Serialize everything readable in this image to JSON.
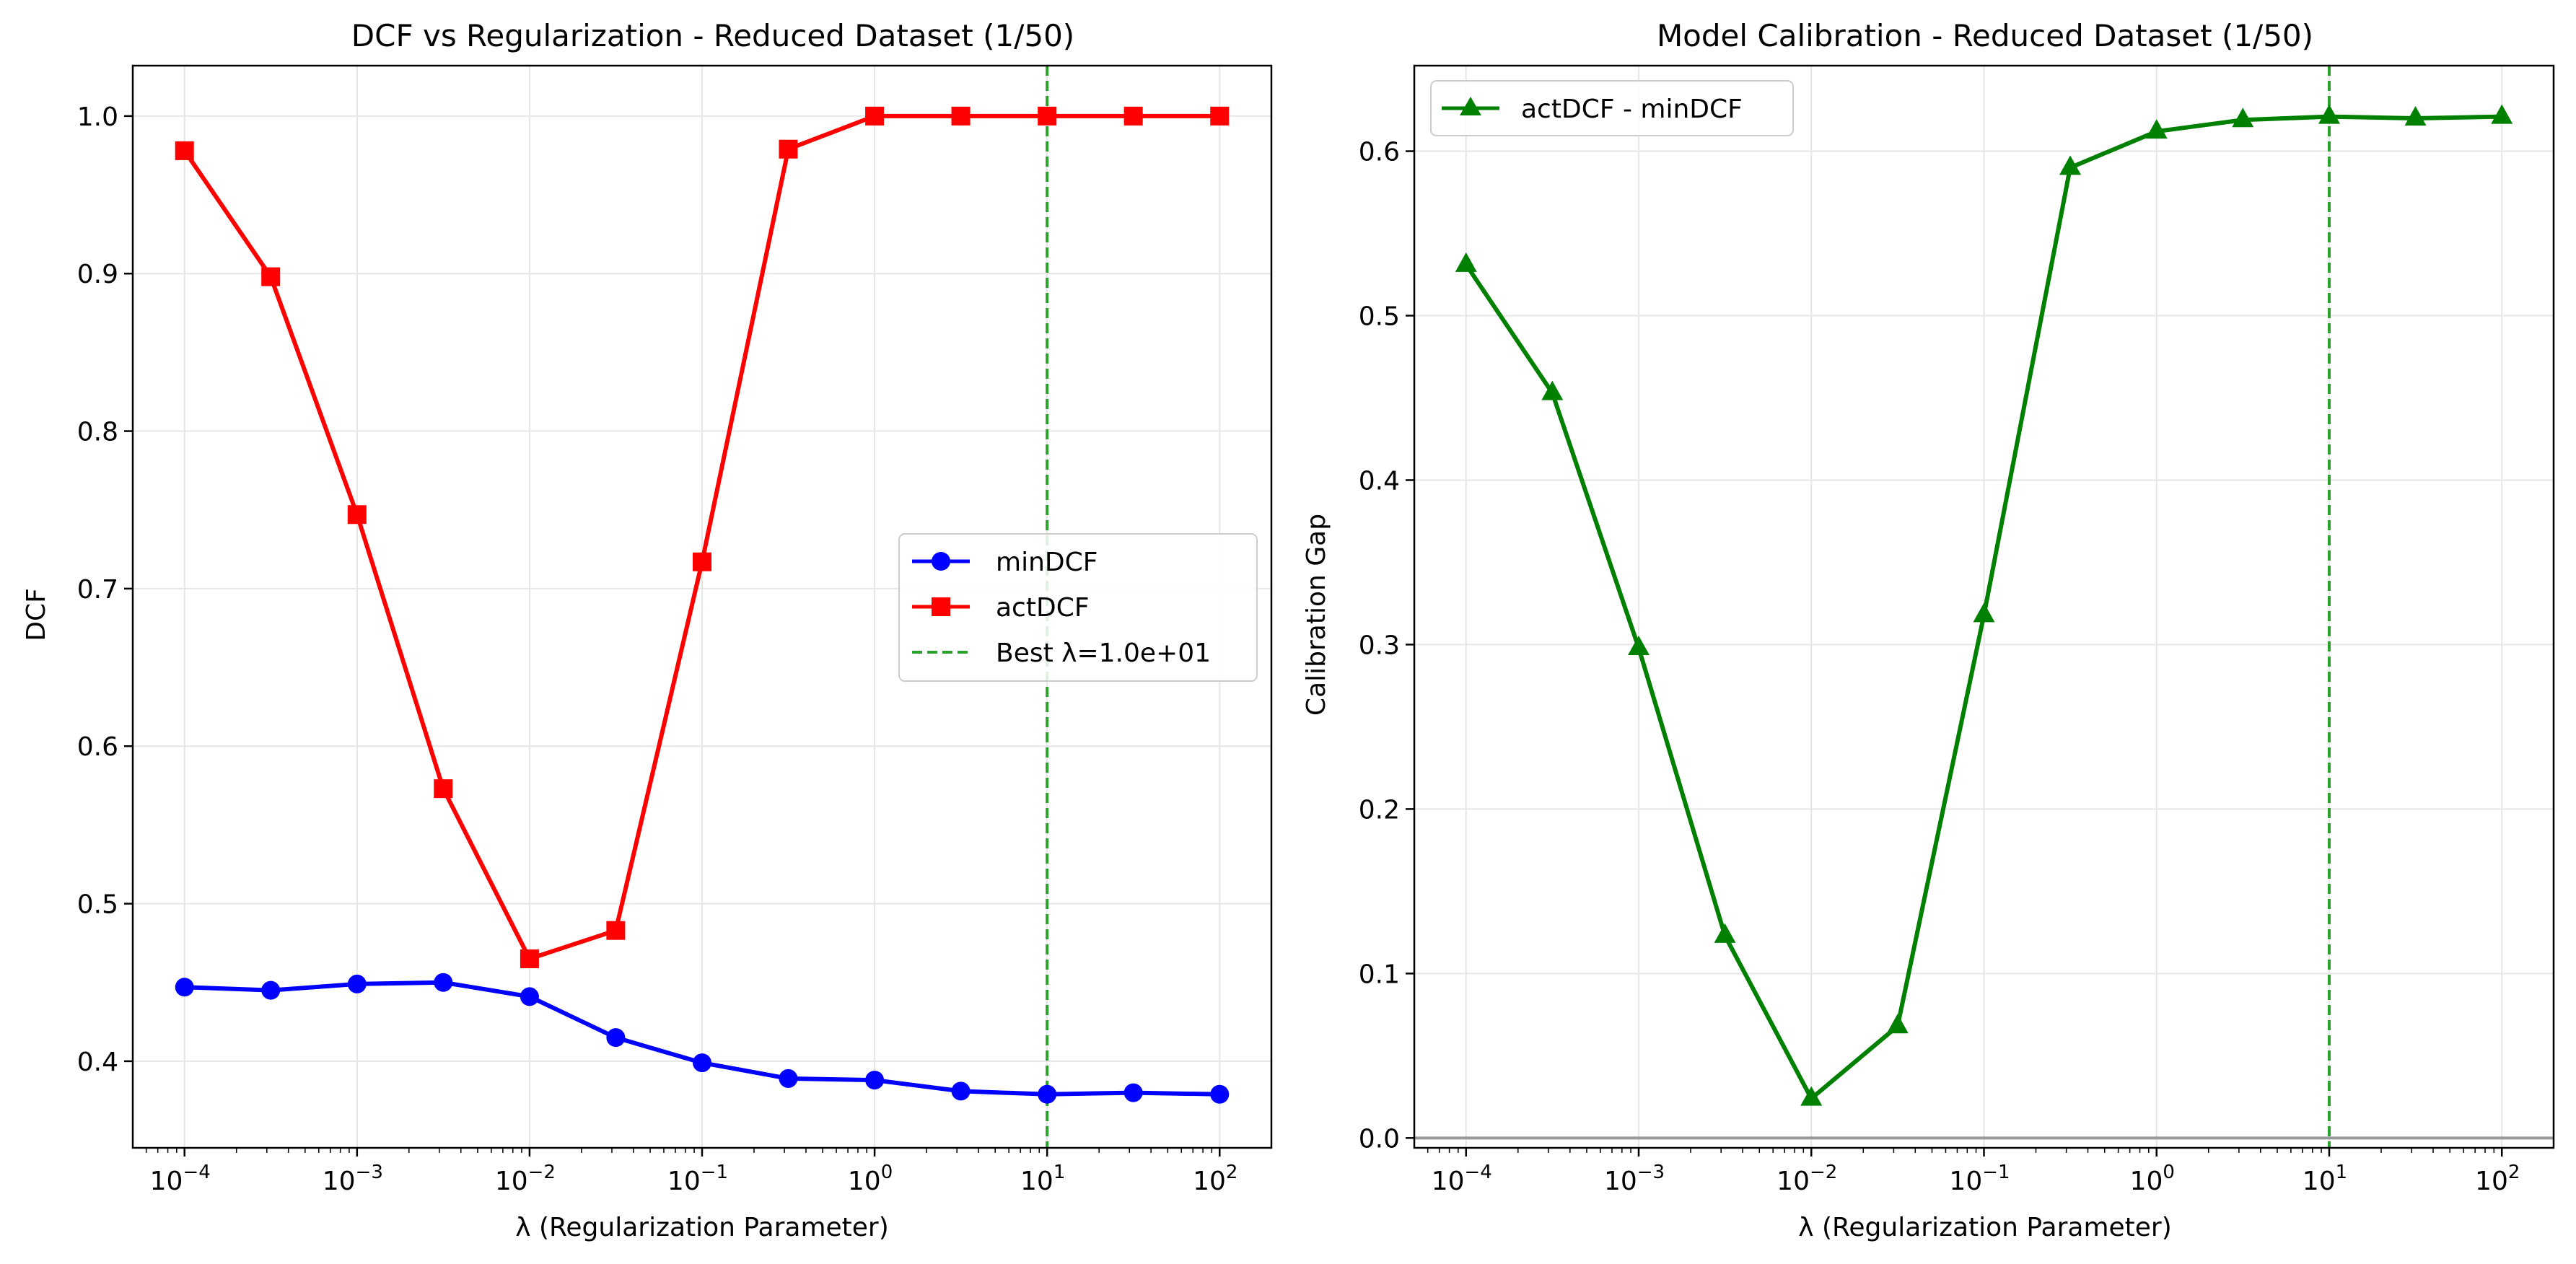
{
  "chart_data": [
    {
      "type": "line",
      "title": "DCF vs Regularization - Reduced Dataset (1/50)",
      "xlabel": "λ (Regularization Parameter)",
      "ylabel": "DCF",
      "xscale": "log",
      "xlim": [
        5.6e-05,
        0.000178
      ],
      "ylim": [
        0.345,
        1.032
      ],
      "xticks": [
        {
          "value": 0.0001,
          "base": "10",
          "exp": "−4"
        },
        {
          "value": 0.001,
          "base": "10",
          "exp": "−3"
        },
        {
          "value": 0.01,
          "base": "10",
          "exp": "−2"
        },
        {
          "value": 0.1,
          "base": "10",
          "exp": "−1"
        },
        {
          "value": 1,
          "base": "10",
          "exp": "0"
        },
        {
          "value": 10,
          "base": "10",
          "exp": "1"
        },
        {
          "value": 100,
          "base": "10",
          "exp": "2"
        }
      ],
      "yticks": [
        {
          "value": 0.4,
          "label": "0.4"
        },
        {
          "value": 0.5,
          "label": "0.5"
        },
        {
          "value": 0.6,
          "label": "0.6"
        },
        {
          "value": 0.7,
          "label": "0.7"
        },
        {
          "value": 0.8,
          "label": "0.8"
        },
        {
          "value": 0.9,
          "label": "0.9"
        },
        {
          "value": 1.0,
          "label": "1.0"
        }
      ],
      "x": [
        0.0001,
        0.000316,
        0.001,
        0.00316,
        0.01,
        0.0316,
        0.1,
        0.316,
        1,
        3.16,
        10,
        31.6,
        100
      ],
      "series": [
        {
          "name": "minDCF",
          "color": "#0000ff",
          "marker": "circle",
          "values": [
            0.447,
            0.445,
            0.449,
            0.45,
            0.441,
            0.415,
            0.399,
            0.389,
            0.388,
            0.381,
            0.379,
            0.38,
            0.379
          ]
        },
        {
          "name": "actDCF",
          "color": "#ff0000",
          "marker": "square",
          "values": [
            0.978,
            0.898,
            0.747,
            0.573,
            0.465,
            0.483,
            0.717,
            0.979,
            1.0,
            1.0,
            1.0,
            1.0,
            1.0
          ]
        }
      ],
      "vline": {
        "x": 10,
        "color": "#2ca02c",
        "label": "Best λ=1.0e+01"
      },
      "legend": {
        "position": "center-right"
      },
      "grid": true
    },
    {
      "type": "line",
      "title": "Model Calibration - Reduced Dataset (1/50)",
      "xlabel": "λ (Regularization Parameter)",
      "ylabel": "Calibration Gap",
      "xscale": "log",
      "xlim": [
        5.6e-05,
        0.000178
      ],
      "ylim": [
        -0.006,
        0.652
      ],
      "xticks": [
        {
          "value": 0.0001,
          "base": "10",
          "exp": "−4"
        },
        {
          "value": 0.001,
          "base": "10",
          "exp": "−3"
        },
        {
          "value": 0.01,
          "base": "10",
          "exp": "−2"
        },
        {
          "value": 0.1,
          "base": "10",
          "exp": "−1"
        },
        {
          "value": 1,
          "base": "10",
          "exp": "0"
        },
        {
          "value": 10,
          "base": "10",
          "exp": "1"
        },
        {
          "value": 100,
          "base": "10",
          "exp": "2"
        }
      ],
      "yticks": [
        {
          "value": 0.0,
          "label": "0.0"
        },
        {
          "value": 0.1,
          "label": "0.1"
        },
        {
          "value": 0.2,
          "label": "0.2"
        },
        {
          "value": 0.3,
          "label": "0.3"
        },
        {
          "value": 0.4,
          "label": "0.4"
        },
        {
          "value": 0.5,
          "label": "0.5"
        },
        {
          "value": 0.6,
          "label": "0.6"
        }
      ],
      "x": [
        0.0001,
        0.000316,
        0.001,
        0.00316,
        0.01,
        0.0316,
        0.1,
        0.316,
        1,
        3.16,
        10,
        31.6,
        100
      ],
      "series": [
        {
          "name": "actDCF - minDCF",
          "color": "#008000",
          "marker": "triangle",
          "values": [
            0.531,
            0.453,
            0.298,
            0.123,
            0.024,
            0.068,
            0.318,
            0.59,
            0.612,
            0.619,
            0.621,
            0.62,
            0.621
          ]
        }
      ],
      "hline": {
        "y": 0,
        "color": "#999999"
      },
      "vline": {
        "x": 10,
        "color": "#2ca02c"
      },
      "legend": {
        "position": "top-left"
      },
      "grid": true
    }
  ]
}
